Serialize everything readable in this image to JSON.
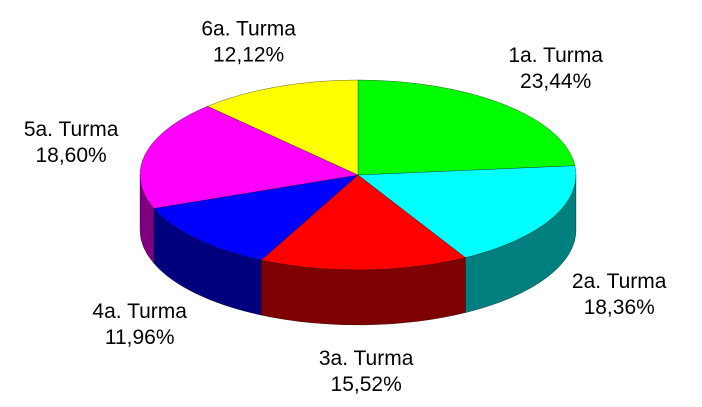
{
  "chart_data": {
    "type": "pie3d",
    "categories": [
      "1a. Turma",
      "2a. Turma",
      "3a. Turma",
      "4a. Turma",
      "5a. Turma",
      "6a. Turma"
    ],
    "values": [
      23.44,
      18.36,
      15.52,
      11.96,
      18.6,
      12.12
    ],
    "value_labels": [
      "23,44%",
      "18,36%",
      "15,52%",
      "11,96%",
      "18,60%",
      "12,12%"
    ],
    "colors": [
      "#00ff00",
      "#00ffff",
      "#ff0000",
      "#0000ff",
      "#ff00ff",
      "#ffff00"
    ]
  }
}
